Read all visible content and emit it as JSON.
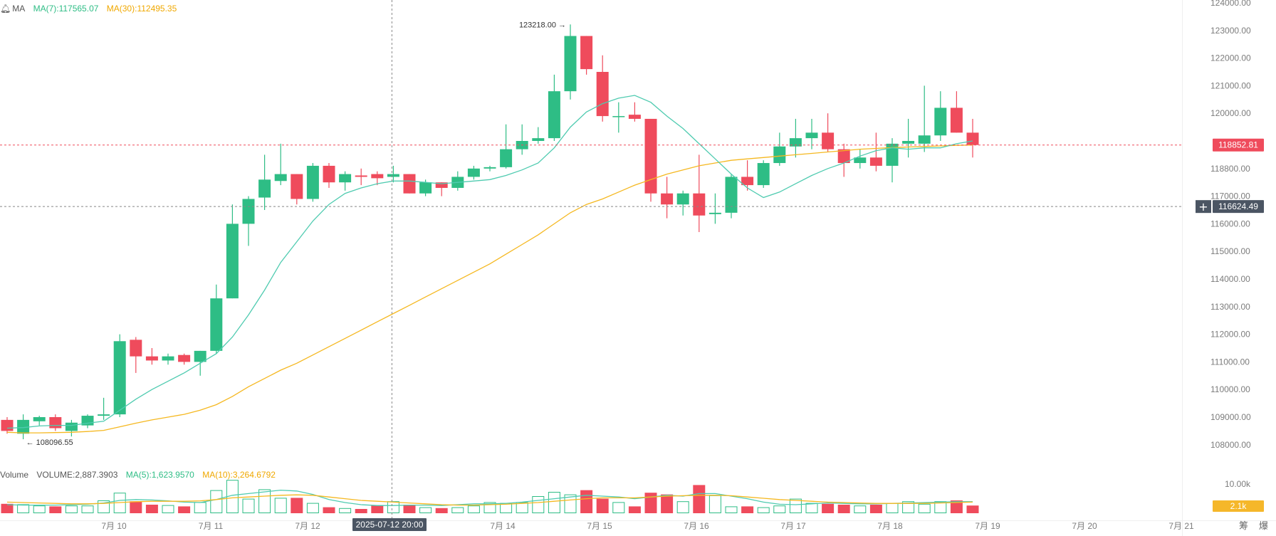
{
  "colors": {
    "up": "#2ebd85",
    "down": "#ef4b5c",
    "ma7": "#4fcbb0",
    "ma30": "#f5b820",
    "axis_text": "#7c7c7c",
    "crosshair_badge": "#4b5563",
    "price_badge": "#ef4b5c",
    "vol_badge": "#f5b72a"
  },
  "legend": {
    "prefix": "MA",
    "ma7": "MA(7):117565.07",
    "ma30": "MA(30):112495.35"
  },
  "volume_legend": {
    "label": "Volume",
    "volume": "VOLUME:2,887.3903",
    "ma5": "MA(5):1,623.9570",
    "ma10": "MA(10):3,264.6792"
  },
  "price_axis_labels": [
    "124000.00",
    "123000.00",
    "122000.00",
    "121000.00",
    "120000.00",
    "118800.00",
    "117000.00",
    "116000.00",
    "115000.00",
    "114000.00",
    "113000.00",
    "112000.00",
    "111000.00",
    "110000.00",
    "109000.00",
    "108000.00"
  ],
  "volume_axis_label": "10.00k",
  "volume_badge": "2.1k",
  "last_price": "118852.81",
  "crosshair_price": "116624.49",
  "crosshair_time": "2025-07-12 20:00",
  "high_marker": "123218.00",
  "low_marker": "108096.55",
  "time_labels": [
    "7月 10",
    "7月 11",
    "7月 12",
    "7月 14",
    "7月 15",
    "7月 16",
    "7月 17",
    "7月 18",
    "7月 19",
    "7月 20",
    "7月 21"
  ],
  "corner_labels": [
    "筹",
    "爆"
  ],
  "chart_data": {
    "type": "candlestick",
    "interval": "4h",
    "ylim": [
      107500,
      124000
    ],
    "candles": [
      {
        "o": 108900,
        "h": 109000,
        "l": 108400,
        "c": 108500
      },
      {
        "o": 108400,
        "h": 109100,
        "l": 108200,
        "c": 108900
      },
      {
        "o": 108850,
        "h": 109050,
        "l": 108700,
        "c": 109000
      },
      {
        "o": 109000,
        "h": 109100,
        "l": 108500,
        "c": 108600
      },
      {
        "o": 108500,
        "h": 108900,
        "l": 108300,
        "c": 108800
      },
      {
        "o": 108700,
        "h": 109100,
        "l": 108600,
        "c": 109050
      },
      {
        "o": 109050,
        "h": 109700,
        "l": 108900,
        "c": 109100
      },
      {
        "o": 109100,
        "h": 112000,
        "l": 109000,
        "c": 111750
      },
      {
        "o": 111800,
        "h": 111900,
        "l": 110600,
        "c": 111200
      },
      {
        "o": 111200,
        "h": 111500,
        "l": 110900,
        "c": 111050
      },
      {
        "o": 111050,
        "h": 111300,
        "l": 110900,
        "c": 111200
      },
      {
        "o": 111250,
        "h": 111300,
        "l": 110900,
        "c": 111000
      },
      {
        "o": 111000,
        "h": 111400,
        "l": 110500,
        "c": 111400
      },
      {
        "o": 111400,
        "h": 113800,
        "l": 111300,
        "c": 113300
      },
      {
        "o": 113300,
        "h": 116700,
        "l": 113300,
        "c": 116000
      },
      {
        "o": 116000,
        "h": 117000,
        "l": 115200,
        "c": 116900
      },
      {
        "o": 116950,
        "h": 118500,
        "l": 116500,
        "c": 117600
      },
      {
        "o": 117550,
        "h": 118900,
        "l": 117400,
        "c": 117800
      },
      {
        "o": 117800,
        "h": 117800,
        "l": 116700,
        "c": 116900
      },
      {
        "o": 116900,
        "h": 118200,
        "l": 116800,
        "c": 118100
      },
      {
        "o": 118100,
        "h": 118200,
        "l": 117300,
        "c": 117500
      },
      {
        "o": 117500,
        "h": 117900,
        "l": 117200,
        "c": 117800
      },
      {
        "o": 117750,
        "h": 118000,
        "l": 117400,
        "c": 117700
      },
      {
        "o": 117800,
        "h": 117900,
        "l": 117400,
        "c": 117650
      },
      {
        "o": 117700,
        "h": 118100,
        "l": 117500,
        "c": 117800
      },
      {
        "o": 117800,
        "h": 117800,
        "l": 117100,
        "c": 117100
      },
      {
        "o": 117100,
        "h": 117600,
        "l": 117000,
        "c": 117500
      },
      {
        "o": 117500,
        "h": 117500,
        "l": 117000,
        "c": 117300
      },
      {
        "o": 117300,
        "h": 117900,
        "l": 117200,
        "c": 117700
      },
      {
        "o": 117700,
        "h": 118100,
        "l": 117600,
        "c": 118000
      },
      {
        "o": 118000,
        "h": 118100,
        "l": 117900,
        "c": 118050
      },
      {
        "o": 118050,
        "h": 119600,
        "l": 118000,
        "c": 118700
      },
      {
        "o": 118700,
        "h": 119600,
        "l": 118500,
        "c": 119000
      },
      {
        "o": 119000,
        "h": 119500,
        "l": 118900,
        "c": 119100
      },
      {
        "o": 119100,
        "h": 121400,
        "l": 119000,
        "c": 120800
      },
      {
        "o": 120800,
        "h": 123218,
        "l": 120500,
        "c": 122800
      },
      {
        "o": 122800,
        "h": 122800,
        "l": 121400,
        "c": 121600
      },
      {
        "o": 121500,
        "h": 122100,
        "l": 119700,
        "c": 119900
      },
      {
        "o": 119900,
        "h": 120400,
        "l": 119300,
        "c": 119900
      },
      {
        "o": 119950,
        "h": 120400,
        "l": 119700,
        "c": 119800
      },
      {
        "o": 119800,
        "h": 119800,
        "l": 116800,
        "c": 117100
      },
      {
        "o": 117100,
        "h": 117700,
        "l": 116200,
        "c": 116700
      },
      {
        "o": 116700,
        "h": 117200,
        "l": 116300,
        "c": 117100
      },
      {
        "o": 117100,
        "h": 118500,
        "l": 115700,
        "c": 116300
      },
      {
        "o": 116350,
        "h": 117100,
        "l": 116000,
        "c": 116400
      },
      {
        "o": 116400,
        "h": 117800,
        "l": 116200,
        "c": 117700
      },
      {
        "o": 117700,
        "h": 118300,
        "l": 117200,
        "c": 117400
      },
      {
        "o": 117400,
        "h": 118300,
        "l": 117300,
        "c": 118200
      },
      {
        "o": 118200,
        "h": 119300,
        "l": 118100,
        "c": 118800
      },
      {
        "o": 118800,
        "h": 119800,
        "l": 118400,
        "c": 119100
      },
      {
        "o": 119100,
        "h": 119800,
        "l": 118700,
        "c": 119300
      },
      {
        "o": 119300,
        "h": 120000,
        "l": 118600,
        "c": 118700
      },
      {
        "o": 118700,
        "h": 118900,
        "l": 117700,
        "c": 118200
      },
      {
        "o": 118200,
        "h": 118700,
        "l": 118000,
        "c": 118400
      },
      {
        "o": 118400,
        "h": 119300,
        "l": 117900,
        "c": 118100
      },
      {
        "o": 118100,
        "h": 119100,
        "l": 117500,
        "c": 118900
      },
      {
        "o": 118900,
        "h": 119800,
        "l": 118400,
        "c": 119000
      },
      {
        "o": 118900,
        "h": 121000,
        "l": 118600,
        "c": 119200
      },
      {
        "o": 119200,
        "h": 120800,
        "l": 119000,
        "c": 120200
      },
      {
        "o": 120200,
        "h": 120800,
        "l": 119300,
        "c": 119300
      },
      {
        "o": 119300,
        "h": 119800,
        "l": 118400,
        "c": 118853
      }
    ],
    "ma7": [
      108600,
      108620,
      108680,
      108700,
      108700,
      108780,
      108850,
      109250,
      109650,
      110000,
      110300,
      110600,
      110950,
      111300,
      111900,
      112700,
      113600,
      114600,
      115350,
      116100,
      116700,
      117100,
      117300,
      117450,
      117550,
      117550,
      117500,
      117450,
      117500,
      117550,
      117600,
      117750,
      117950,
      118200,
      118750,
      119500,
      120050,
      120350,
      120550,
      120650,
      120400,
      119900,
      119450,
      118900,
      118350,
      117800,
      117300,
      116950,
      117150,
      117450,
      117750,
      118000,
      118200,
      118450,
      118650,
      118750,
      118700,
      118750,
      118750,
      118900,
      119000
    ],
    "ma30": [
      108450,
      108430,
      108430,
      108440,
      108450,
      108480,
      108520,
      108650,
      108780,
      108900,
      109000,
      109100,
      109250,
      109450,
      109750,
      110100,
      110400,
      110700,
      110950,
      111250,
      111550,
      111850,
      112150,
      112450,
      112750,
      113050,
      113350,
      113650,
      113950,
      114250,
      114550,
      114900,
      115250,
      115600,
      116000,
      116400,
      116700,
      116900,
      117150,
      117400,
      117600,
      117800,
      117950,
      118100,
      118200,
      118300,
      118350,
      118400,
      118450,
      118500,
      118550,
      118600,
      118650,
      118700,
      118730,
      118760,
      118780,
      118800,
      118820,
      118840,
      118853
    ],
    "volume": [
      1100,
      1050,
      900,
      800,
      900,
      900,
      1500,
      2400,
      1400,
      1000,
      950,
      800,
      1300,
      2700,
      3900,
      1700,
      2800,
      1800,
      1800,
      1200,
      700,
      600,
      500,
      900,
      1400,
      1000,
      700,
      600,
      700,
      900,
      1300,
      1200,
      1300,
      2000,
      2500,
      2200,
      2700,
      1700,
      1300,
      800,
      2400,
      2200,
      1400,
      3300,
      2100,
      800,
      800,
      700,
      900,
      1700,
      1200,
      1100,
      1000,
      900,
      1000,
      1200,
      1400,
      1100,
      1400,
      1500,
      900
    ],
    "vol_ma_lines": [
      [
        1000,
        950,
        950,
        950,
        1000,
        1050,
        1200,
        1500,
        1600,
        1550,
        1450,
        1300,
        1250,
        1600,
        2100,
        2300,
        2500,
        2700,
        2600,
        2200,
        1600,
        1250,
        1000,
        900,
        900,
        950,
        950,
        900,
        1000,
        1100,
        1100,
        1150,
        1300,
        1500,
        1700,
        1900,
        2100,
        2000,
        1900,
        1700,
        1900,
        2100,
        2000,
        2300,
        2300,
        2000,
        1700,
        1300,
        1050,
        1000,
        1100,
        1200,
        1150,
        1100,
        1100,
        1150,
        1200,
        1250,
        1300,
        1350,
        1350
      ],
      [
        1300,
        1250,
        1200,
        1150,
        1100,
        1100,
        1150,
        1250,
        1350,
        1400,
        1400,
        1400,
        1450,
        1600,
        1800,
        1900,
        2000,
        2100,
        2150,
        2100,
        1900,
        1700,
        1500,
        1400,
        1300,
        1200,
        1100,
        1000,
        950,
        950,
        1000,
        1050,
        1150,
        1250,
        1400,
        1550,
        1700,
        1800,
        1800,
        1800,
        1900,
        2000,
        2050,
        2100,
        2100,
        2050,
        1900,
        1750,
        1600,
        1500,
        1400,
        1300,
        1250,
        1200,
        1150,
        1150,
        1150,
        1150,
        1200,
        1250,
        1300
      ]
    ]
  }
}
